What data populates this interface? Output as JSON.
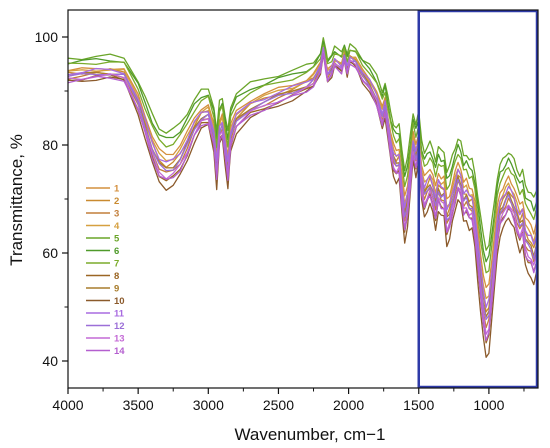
{
  "chart_data": {
    "type": "line",
    "xlabel": "Wavenumber, cm−1",
    "ylabel": "Transmittance, %",
    "xlim": [
      4000,
      650
    ],
    "ylim": [
      35,
      105
    ],
    "x_axis_reversed": true,
    "x_ticks": [
      "4000",
      "3500",
      "3000",
      "2500",
      "2000",
      "1500",
      "1000"
    ],
    "y_ticks": [
      "40",
      "60",
      "80",
      "100"
    ],
    "grid": false,
    "legend_position": "left-middle",
    "highlight_region": {
      "x_range": [
        1500,
        650
      ],
      "color": "#2e3aa8"
    },
    "base_profile": {
      "x": [
        4000,
        3900,
        3800,
        3700,
        3600,
        3500,
        3450,
        3400,
        3350,
        3300,
        3250,
        3200,
        3150,
        3100,
        3050,
        3000,
        2960,
        2940,
        2920,
        2900,
        2880,
        2860,
        2850,
        2840,
        2800,
        2700,
        2600,
        2500,
        2400,
        2300,
        2250,
        2200,
        2180,
        2160,
        2150,
        2120,
        2100,
        2050,
        2030,
        2010,
        1990,
        1950,
        1900,
        1850,
        1800,
        1760,
        1740,
        1720,
        1700,
        1680,
        1660,
        1640,
        1620,
        1600,
        1580,
        1560,
        1540,
        1520,
        1500,
        1480,
        1460,
        1440,
        1420,
        1400,
        1380,
        1360,
        1340,
        1320,
        1300,
        1280,
        1260,
        1240,
        1220,
        1200,
        1180,
        1160,
        1140,
        1120,
        1100,
        1080,
        1060,
        1040,
        1020,
        1000,
        980,
        960,
        940,
        920,
        900,
        880,
        860,
        840,
        820,
        800,
        780,
        760,
        740,
        720,
        700,
        680,
        660
      ],
      "y": [
        93,
        93.2,
        93.5,
        93.6,
        93.2,
        88,
        84,
        80,
        77,
        76,
        76.5,
        78,
        80.5,
        83.5,
        85.5,
        86,
        82,
        76,
        83,
        84,
        80,
        76,
        79,
        82,
        85,
        87.2,
        88.3,
        89.3,
        90.2,
        91.3,
        92.2,
        94.5,
        97.5,
        94.5,
        93,
        94,
        95.5,
        94.5,
        96.5,
        94,
        96,
        95.5,
        93,
        91.5,
        89,
        85.5,
        87.5,
        84,
        80.5,
        78,
        77,
        77.5,
        72,
        67.5,
        70,
        75,
        80.5,
        78,
        80.5,
        74,
        71.5,
        72.5,
        73.5,
        72,
        69.5,
        72.5,
        71.5,
        71.5,
        67,
        68,
        70.5,
        72.5,
        74.5,
        73.5,
        70.5,
        71,
        69.5,
        69.5,
        66.5,
        61.5,
        56.5,
        52,
        49,
        50,
        55,
        60,
        65.5,
        68.5,
        69.5,
        70.5,
        71.5,
        70.5,
        69.5,
        67.5,
        66,
        67,
        63.5,
        62.5,
        62,
        60.5,
        62.5
      ]
    },
    "series": [
      {
        "name": "1",
        "color": "#d4903e",
        "offset": 1.0,
        "amp": 0.92
      },
      {
        "name": "2",
        "color": "#c98a30",
        "offset": 0.2,
        "amp": 1.0
      },
      {
        "name": "3",
        "color": "#c27e3a",
        "offset": -0.6,
        "amp": 1.05
      },
      {
        "name": "4",
        "color": "#d6a040",
        "offset": 0.6,
        "amp": 0.96
      },
      {
        "name": "5",
        "color": "#6aa529",
        "offset": 3.6,
        "amp": 0.8
      },
      {
        "name": "6",
        "color": "#4f9a2a",
        "offset": 2.8,
        "amp": 0.84
      },
      {
        "name": "7",
        "color": "#7bac2b",
        "offset": 2.2,
        "amp": 0.88
      },
      {
        "name": "8",
        "color": "#9b6624",
        "offset": -1.2,
        "amp": 1.1
      },
      {
        "name": "9",
        "color": "#a97d2d",
        "offset": -0.2,
        "amp": 1.02
      },
      {
        "name": "10",
        "color": "#8b5a2b",
        "offset": -1.8,
        "amp": 1.16
      },
      {
        "name": "11",
        "color": "#a86be0",
        "offset": 0.4,
        "amp": 0.98
      },
      {
        "name": "12",
        "color": "#9c6fd8",
        "offset": -0.4,
        "amp": 1.03
      },
      {
        "name": "13",
        "color": "#c46ad6",
        "offset": -1.0,
        "amp": 1.07
      },
      {
        "name": "14",
        "color": "#b45fcf",
        "offset": -1.4,
        "amp": 1.09
      }
    ]
  }
}
